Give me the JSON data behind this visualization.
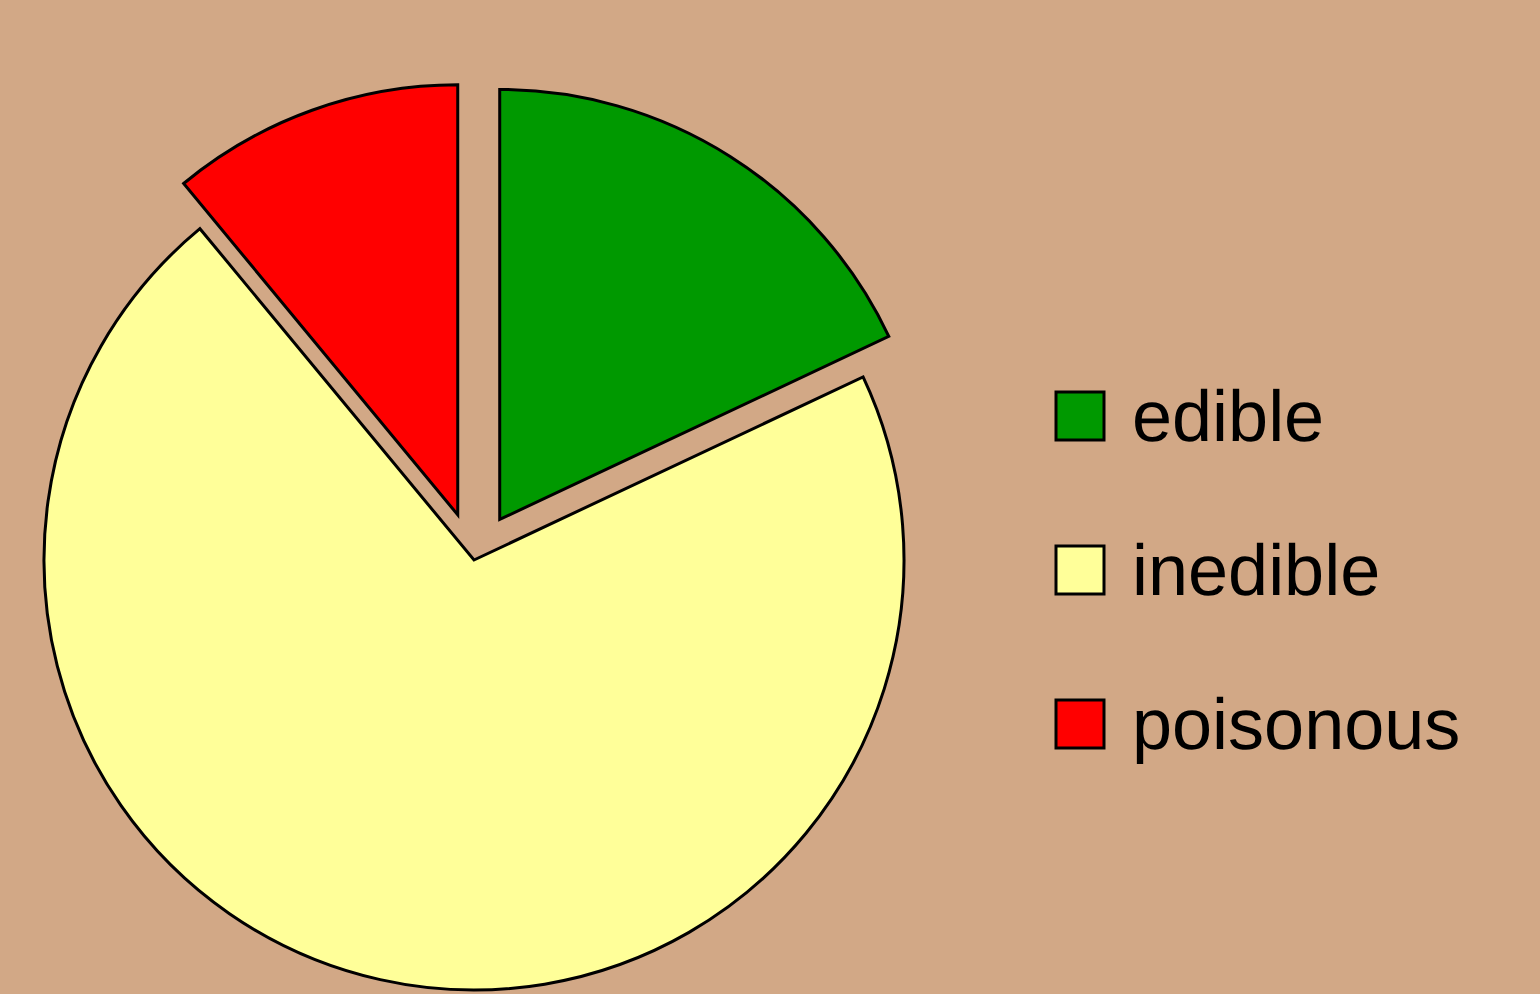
{
  "chart_data": {
    "type": "pie",
    "categories": [
      "edible",
      "inedible",
      "poisonous"
    ],
    "values": [
      18,
      71,
      11
    ],
    "colors": [
      "#009900",
      "#ffff99",
      "#ff0000"
    ],
    "legend": "right"
  }
}
